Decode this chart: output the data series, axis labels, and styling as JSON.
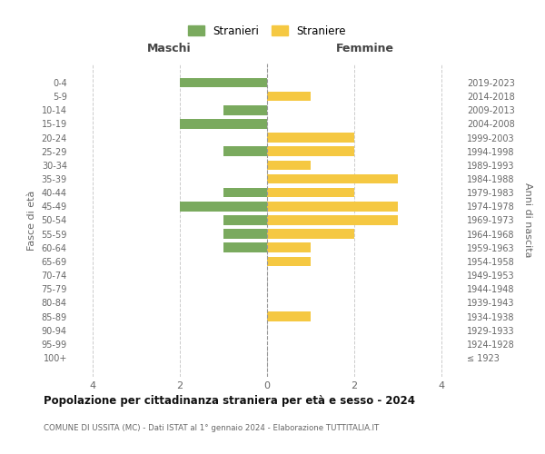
{
  "age_groups": [
    "100+",
    "95-99",
    "90-94",
    "85-89",
    "80-84",
    "75-79",
    "70-74",
    "65-69",
    "60-64",
    "55-59",
    "50-54",
    "45-49",
    "40-44",
    "35-39",
    "30-34",
    "25-29",
    "20-24",
    "15-19",
    "10-14",
    "5-9",
    "0-4"
  ],
  "birth_years": [
    "≤ 1923",
    "1924-1928",
    "1929-1933",
    "1934-1938",
    "1939-1943",
    "1944-1948",
    "1949-1953",
    "1954-1958",
    "1959-1963",
    "1964-1968",
    "1969-1973",
    "1974-1978",
    "1979-1983",
    "1984-1988",
    "1989-1993",
    "1994-1998",
    "1999-2003",
    "2004-2008",
    "2009-2013",
    "2014-2018",
    "2019-2023"
  ],
  "maschi": [
    0,
    0,
    0,
    0,
    0,
    0,
    0,
    0,
    1,
    1,
    1,
    2,
    1,
    0,
    0,
    1,
    0,
    2,
    1,
    0,
    2
  ],
  "femmine": [
    0,
    0,
    0,
    1,
    0,
    0,
    0,
    1,
    1,
    2,
    3,
    3,
    2,
    3,
    1,
    2,
    2,
    0,
    0,
    1,
    0
  ],
  "color_maschi": "#7aaa5e",
  "color_femmine": "#f5c842",
  "background_color": "#ffffff",
  "grid_color": "#cccccc",
  "title": "Popolazione per cittadinanza straniera per età e sesso - 2024",
  "subtitle": "COMUNE DI USSITA (MC) - Dati ISTAT al 1° gennaio 2024 - Elaborazione TUTTITALIA.IT",
  "xlabel_left": "Maschi",
  "xlabel_right": "Femmine",
  "ylabel_left": "Fasce di età",
  "ylabel_right": "Anni di nascita",
  "legend_stranieri": "Stranieri",
  "legend_straniere": "Straniere",
  "xlim": 4.5,
  "xtick_labels": [
    "4",
    "2",
    "0",
    "2",
    "4"
  ],
  "xtick_positions": [
    -4,
    -2,
    0,
    2,
    4
  ]
}
